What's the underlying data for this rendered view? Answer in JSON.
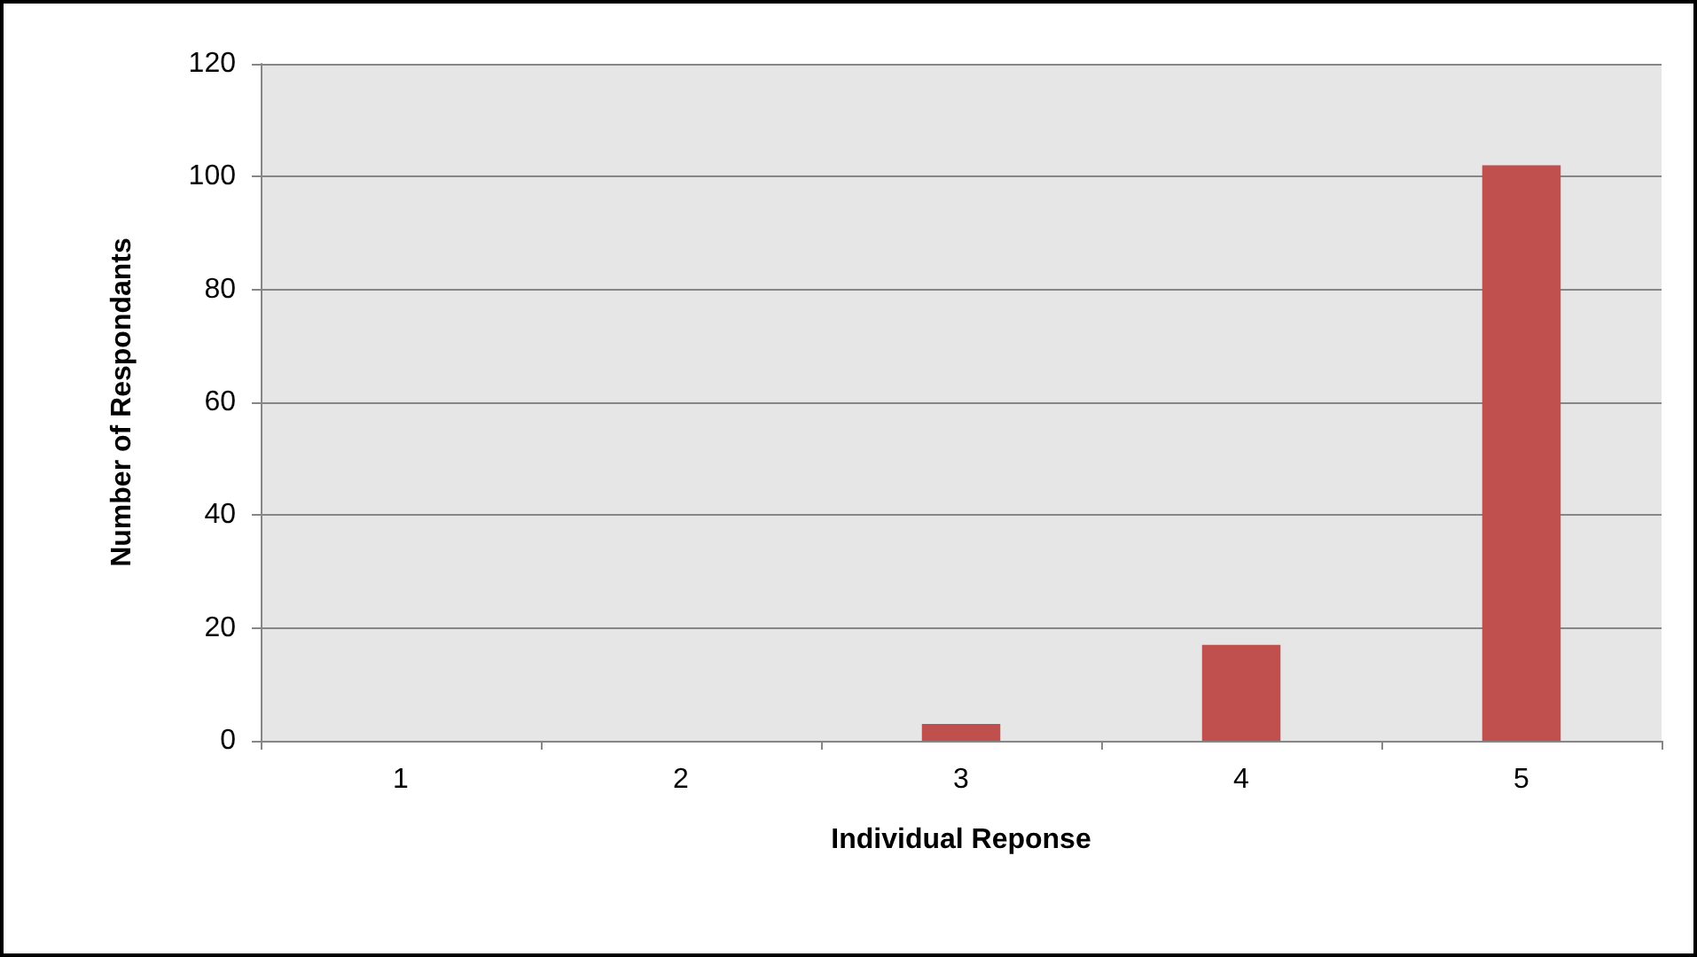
{
  "chart_data": {
    "type": "bar",
    "xlabel": "Individual Reponse",
    "ylabel": "Number of Respondants",
    "categories": [
      "1",
      "2",
      "3",
      "4",
      "5"
    ],
    "values": [
      0,
      0,
      3,
      17,
      102
    ],
    "color": "#c0504d",
    "ylim": [
      0,
      120
    ],
    "yticks": [
      0,
      20,
      40,
      60,
      80,
      100,
      120
    ],
    "grid": "y"
  }
}
